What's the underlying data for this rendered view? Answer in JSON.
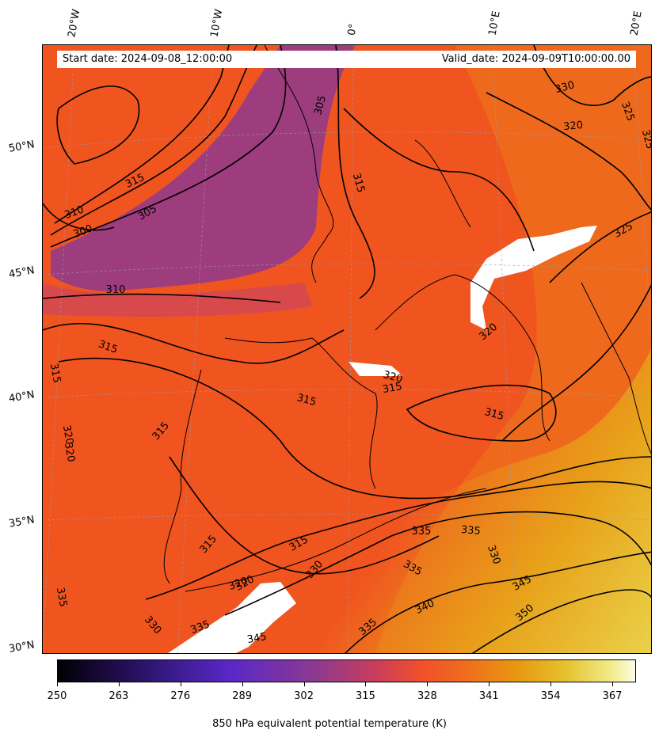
{
  "header": {
    "start_date": "Start date: 2024-09-08_12:00:00",
    "valid_date": "Valid_date: 2024-09-09T10:00:00.00"
  },
  "map": {
    "lon_labels": [
      "20°W",
      "10°W",
      "0°",
      "10°E",
      "20°E"
    ],
    "lat_labels": [
      "50°N",
      "45°N",
      "40°N",
      "35°N",
      "30°N"
    ],
    "contour_labels": [
      "330",
      "325",
      "320",
      "325",
      "305",
      "315",
      "310",
      "300",
      "315",
      "305",
      "310",
      "315",
      "315",
      "320",
      "325",
      "315",
      "320",
      "315",
      "320",
      "315",
      "335",
      "315",
      "315",
      "320",
      "335",
      "335",
      "330",
      "335",
      "315",
      "320",
      "330",
      "340",
      "345",
      "350",
      "335",
      "345",
      "335",
      "320",
      "330"
    ]
  },
  "colorbar": {
    "ticks": [
      "250",
      "263",
      "276",
      "289",
      "302",
      "315",
      "328",
      "341",
      "354",
      "367"
    ],
    "label": "850 hPa equivalent potential temperature (K)",
    "range": [
      250,
      372
    ]
  },
  "colors": {
    "warm_orange": "#f0541f",
    "cold_purple": "#8e3a8e",
    "hot_yellow": "#e6c22e",
    "missing": "#ffffff"
  }
}
